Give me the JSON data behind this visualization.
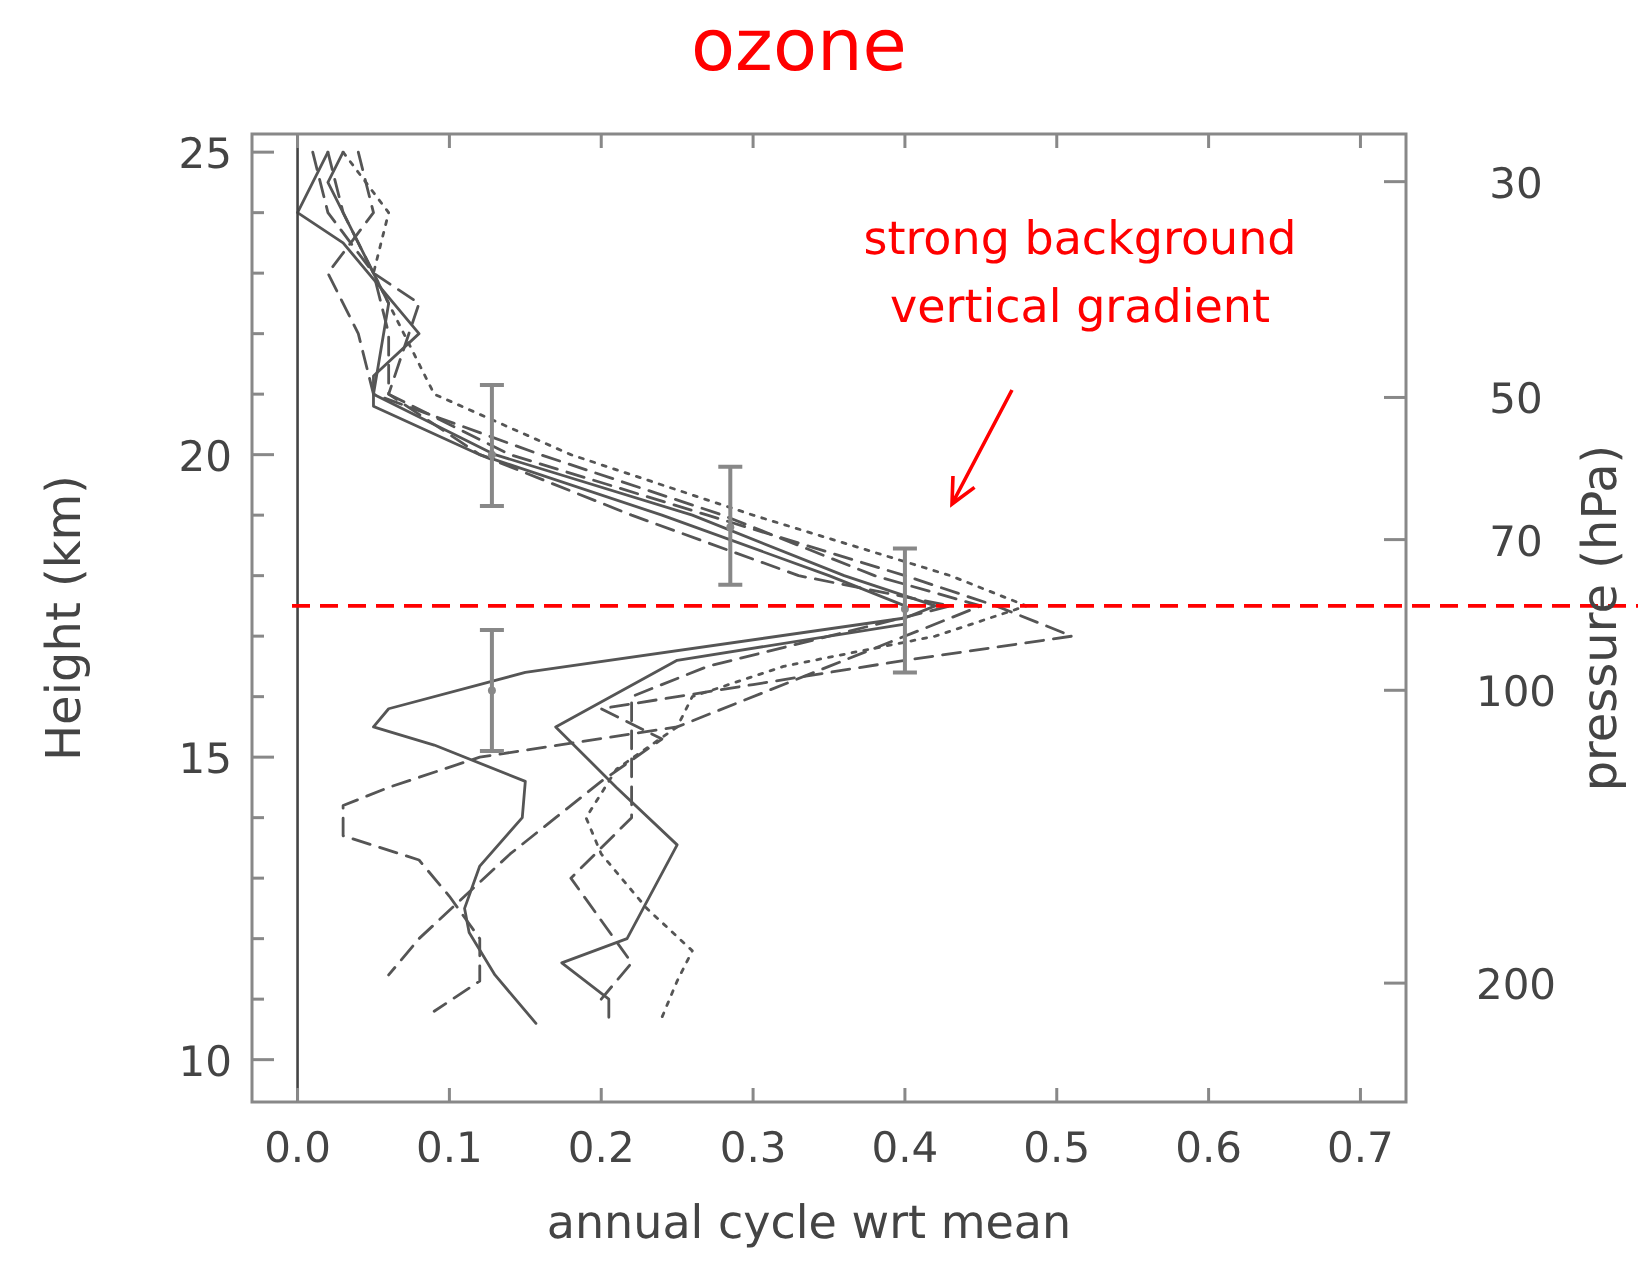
{
  "chart_data": {
    "type": "line",
    "title": "ozone",
    "xlabel": "annual cycle wrt mean",
    "ylabel": "Height (km)",
    "y2label": "pressure (hPa)",
    "xlim": [
      -0.03,
      0.73
    ],
    "xticks": [
      {
        "value": 0,
        "label": "0.0"
      },
      {
        "value": 0.1,
        "label": "0.1"
      },
      {
        "value": 0.2,
        "label": "0.2"
      },
      {
        "value": 0.3,
        "label": "0.3"
      },
      {
        "value": 0.4,
        "label": "0.4"
      },
      {
        "value": 0.5,
        "label": "0.5"
      },
      {
        "value": 0.6,
        "label": "0.6"
      },
      {
        "value": 0.7,
        "label": "0.7"
      }
    ],
    "ylim": [
      9.3,
      25.3
    ],
    "yticks": [
      10,
      {
        "value": 11,
        "label": null
      },
      {
        "value": 12,
        "label": null
      },
      {
        "value": 13,
        "label": null
      },
      {
        "value": 14,
        "label": null
      },
      15,
      {
        "value": 16,
        "label": null
      },
      {
        "value": 17,
        "label": null
      },
      {
        "value": 18,
        "label": null
      },
      {
        "value": 19,
        "label": null
      },
      20,
      {
        "value": 21,
        "label": null
      },
      {
        "value": 22,
        "label": null
      },
      {
        "value": 23,
        "label": null
      },
      {
        "value": 24,
        "label": null
      },
      25
    ],
    "y2lim": [
      265,
      26.8
    ],
    "y2ticks": [
      30,
      50,
      70,
      100,
      200
    ],
    "log": "y2",
    "series": [
      {
        "color": "#555555",
        "line_style": "solid",
        "x": [
          0.02,
          0.0,
          0.03,
          0.08,
          0.05,
          0.05,
          0.12,
          0.24,
          0.35,
          0.4,
          0.4,
          0.25,
          0.17,
          0.21,
          0.25,
          0.217,
          0.174,
          0.205,
          0.205
        ],
        "values": [
          25,
          24,
          23.5,
          22,
          21.3,
          20.8,
          20,
          19,
          18,
          17.5,
          17.2,
          16.6,
          15.5,
          14.5,
          13.55,
          12.0,
          11.6,
          11.0,
          10.7
        ]
      },
      {
        "color": "#555555",
        "line_style": "solid",
        "x": [
          0.03,
          0.02,
          0.04,
          0.06,
          0.05,
          0.13,
          0.26,
          0.36,
          0.42,
          0.4,
          0.15,
          0.06,
          0.05,
          0.09,
          0.15,
          0.148,
          0.12,
          0.11,
          0.113,
          0.13,
          0.157
        ],
        "values": [
          25,
          24.5,
          23.5,
          22.5,
          21,
          20,
          19,
          18,
          17.5,
          17.3,
          16.4,
          15.8,
          15.5,
          15.2,
          14.6,
          14.0,
          13.2,
          12.5,
          12.1,
          11.4,
          10.6
        ]
      },
      {
        "color": "#555555",
        "line_style": "dashed",
        "x": [
          0.04,
          0.05,
          0.02,
          0.04,
          0.05,
          0.16,
          0.28,
          0.38,
          0.45,
          0.35,
          0.25,
          0.12,
          0.06,
          0.03,
          0.03,
          0.08,
          0.1,
          0.12,
          0.12,
          0.09
        ],
        "values": [
          25,
          24,
          23,
          22,
          21,
          20,
          19,
          18,
          17.5,
          16.5,
          15.5,
          15.0,
          14.5,
          14.2,
          13.7,
          13.3,
          12.7,
          12.0,
          11.3,
          10.8
        ]
      },
      {
        "color": "#555555",
        "line_style": "dashed",
        "x": [
          0.02,
          0.03,
          0.05,
          0.06,
          0.06,
          0.14,
          0.27,
          0.4,
          0.46,
          0.51,
          0.4,
          0.3,
          0.2,
          0.24,
          0.2,
          0.17,
          0.14,
          0.11,
          0.08,
          0.06
        ],
        "values": [
          25,
          24,
          23,
          22,
          21,
          20,
          19,
          18,
          17.5,
          17.0,
          16.6,
          16.2,
          15.8,
          15.3,
          14.6,
          14.0,
          13.4,
          12.7,
          12.0,
          11.4
        ]
      },
      {
        "color": "#555555",
        "line_style": "dotted",
        "x": [
          0.03,
          0.06,
          0.05,
          0.07,
          0.09,
          0.18,
          0.3,
          0.43,
          0.48,
          0.42,
          0.32,
          0.26,
          0.25,
          0.21,
          0.19,
          0.2,
          0.23,
          0.26,
          0.25,
          0.24
        ],
        "values": [
          25,
          24,
          23,
          22,
          21,
          20,
          19,
          18,
          17.5,
          17.0,
          16.5,
          16.0,
          15.5,
          14.8,
          14.0,
          13.4,
          12.5,
          11.8,
          11.3,
          10.7
        ]
      },
      {
        "color": "#555555",
        "line_style": "dashed",
        "x": [
          0.01,
          0.02,
          0.05,
          0.08,
          0.06,
          0.12,
          0.22,
          0.33,
          0.43,
          0.35,
          0.27,
          0.22,
          0.22,
          0.22,
          0.18,
          0.2,
          0.22,
          0.2
        ],
        "values": [
          25,
          24,
          23,
          22.5,
          21,
          20,
          19,
          18,
          17.5,
          17.0,
          16.5,
          16.0,
          15.0,
          14.0,
          13.0,
          12.3,
          11.6,
          11.0
        ]
      },
      {
        "type": "scatter",
        "marker": "circle",
        "color": "#888888",
        "x": [
          0.128,
          0.285,
          0.4,
          0.128
        ],
        "values": [
          20.0,
          18.8,
          17.45,
          16.1
        ],
        "errors": [
          [
            19.15,
            21.15
          ],
          [
            17.85,
            19.8
          ],
          [
            16.4,
            18.45
          ],
          [
            15.1,
            17.1
          ]
        ]
      }
    ],
    "ref_lines": [
      {
        "axis": "x",
        "value": 0,
        "color": "#444444",
        "line_style": "solid"
      },
      {
        "axis": "y",
        "value": 17.5,
        "color": "#ff0000",
        "line_style": "dashed"
      }
    ],
    "annotations": [
      "strong background vertical gradient"
    ]
  }
}
